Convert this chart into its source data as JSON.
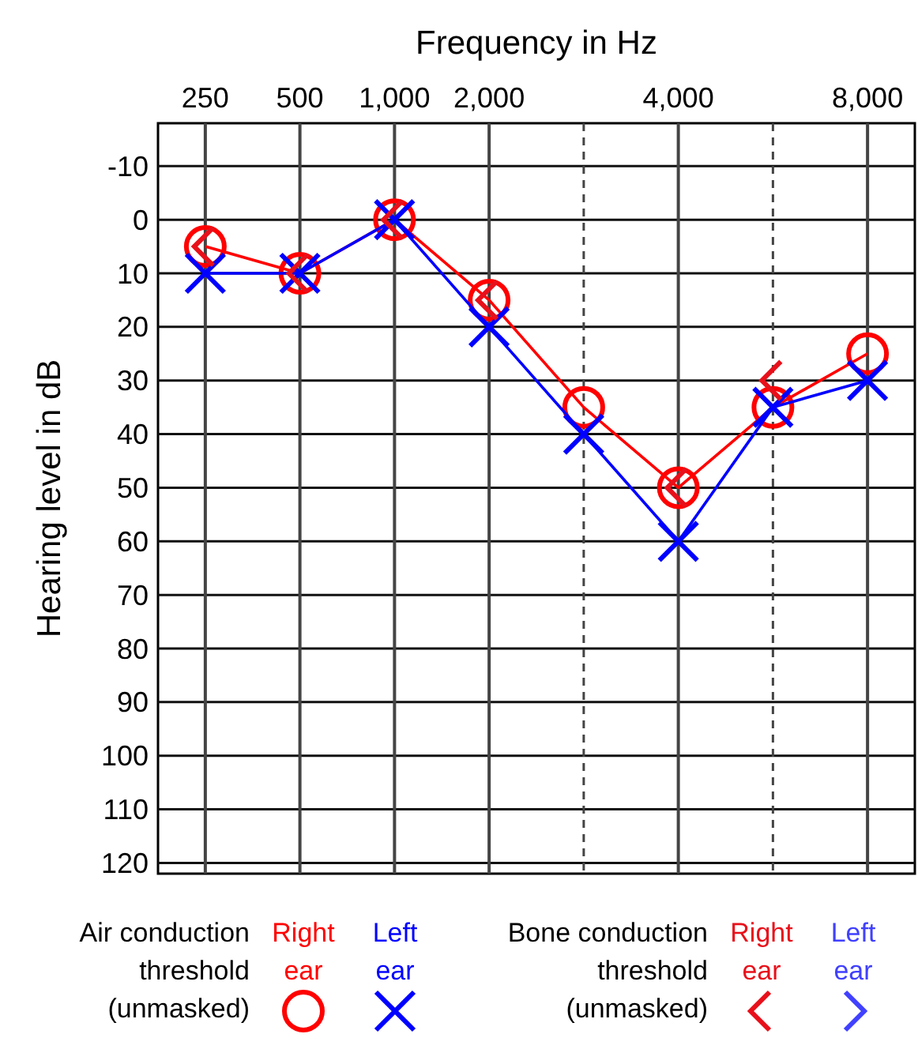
{
  "chart_data": {
    "type": "line",
    "xlabel": "Frequency in Hz",
    "ylabel": "Hearing level in dB",
    "categories": [
      "250",
      "500",
      "1,000",
      "2,000",
      null,
      "4,000",
      null,
      "8,000"
    ],
    "ylim": [
      122,
      -18
    ],
    "yticks": [
      -10,
      0,
      10,
      20,
      30,
      40,
      50,
      60,
      70,
      80,
      90,
      100,
      110,
      120
    ],
    "grid": true,
    "legend": "bottom",
    "annotations": [
      "Air conduction threshold (unmasked)",
      "Bone conduction threshold (unmasked)"
    ],
    "series": [
      {
        "name": "Right ear",
        "color": "#ff0000",
        "marker": "circle",
        "line_style": "solid",
        "values": [
          5,
          10,
          0,
          15,
          35,
          50,
          35,
          25
        ]
      },
      {
        "name": "Left ear",
        "color": "#0000ff",
        "marker": "cross",
        "line_style": "solid",
        "values": [
          10,
          10,
          0,
          20,
          40,
          60,
          35,
          30
        ]
      },
      {
        "name": "Right ear",
        "type": "scatter",
        "color": "#e8101a",
        "values": [
          5,
          10,
          0,
          15,
          null,
          50,
          30,
          null
        ]
      },
      {
        "name": "Left ear",
        "type": "scatter",
        "color": "#4040ff",
        "values": [
          null,
          null,
          null,
          null,
          null,
          null,
          null,
          null
        ]
      }
    ]
  }
}
